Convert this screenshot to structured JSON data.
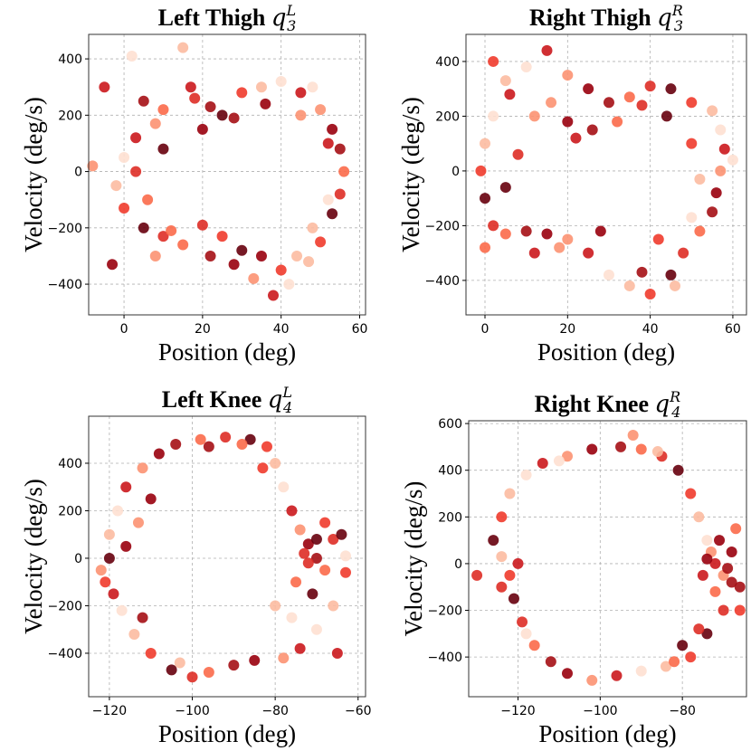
{
  "chart_data": [
    {
      "type": "scatter",
      "title": {
        "text": "Left Thigh",
        "symbol": "q",
        "sub": "3",
        "sup": "L"
      },
      "xlabel": "Position (deg)",
      "ylabel": "Velocity (deg/s)",
      "xlim": [
        -9,
        61.5
      ],
      "ylim": [
        -509,
        487
      ],
      "xticks": [
        0,
        20,
        40,
        60
      ],
      "yticks": [
        -400,
        -200,
        0,
        200,
        400
      ],
      "grid": true,
      "points": [
        [
          15,
          440
        ],
        [
          2,
          410
        ],
        [
          -5,
          300
        ],
        [
          -8,
          20
        ],
        [
          -3,
          -330
        ],
        [
          5,
          250
        ],
        [
          10,
          220
        ],
        [
          18,
          260
        ],
        [
          25,
          200
        ],
        [
          30,
          280
        ],
        [
          35,
          300
        ],
        [
          40,
          320
        ],
        [
          45,
          280
        ],
        [
          50,
          220
        ],
        [
          53,
          150
        ],
        [
          55,
          80
        ],
        [
          56,
          0
        ],
        [
          55,
          -80
        ],
        [
          53,
          -150
        ],
        [
          50,
          -250
        ],
        [
          47,
          -320
        ],
        [
          42,
          -400
        ],
        [
          38,
          -440
        ],
        [
          33,
          -380
        ],
        [
          28,
          -330
        ],
        [
          22,
          -300
        ],
        [
          15,
          -260
        ],
        [
          10,
          -230
        ],
        [
          5,
          -200
        ],
        [
          0,
          -130
        ],
        [
          -2,
          -50
        ],
        [
          0,
          50
        ],
        [
          3,
          120
        ],
        [
          8,
          170
        ],
        [
          20,
          150
        ],
        [
          28,
          190
        ],
        [
          12,
          -210
        ],
        [
          20,
          -190
        ],
        [
          30,
          -280
        ],
        [
          40,
          -350
        ],
        [
          48,
          -200
        ],
        [
          52,
          -100
        ],
        [
          52,
          100
        ],
        [
          45,
          200
        ],
        [
          36,
          240
        ],
        [
          22,
          230
        ],
        [
          6,
          -100
        ],
        [
          3,
          0
        ],
        [
          10,
          80
        ],
        [
          25,
          -230
        ],
        [
          44,
          -300
        ],
        [
          48,
          300
        ],
        [
          17,
          300
        ],
        [
          8,
          -300
        ],
        [
          35,
          -300
        ]
      ]
    },
    {
      "type": "scatter",
      "title": {
        "text": "Right Thigh",
        "symbol": "q",
        "sub": "3",
        "sup": "R"
      },
      "xlabel": "Position (deg)",
      "ylabel": "Velocity (deg/s)",
      "xlim": [
        -4.6,
        63.3
      ],
      "ylim": [
        -526,
        499
      ],
      "xticks": [
        0,
        20,
        40,
        60
      ],
      "yticks": [
        -400,
        -200,
        0,
        200,
        400
      ],
      "grid": true,
      "points": [
        [
          2,
          400
        ],
        [
          5,
          330
        ],
        [
          10,
          380
        ],
        [
          15,
          440
        ],
        [
          20,
          350
        ],
        [
          25,
          300
        ],
        [
          30,
          250
        ],
        [
          35,
          270
        ],
        [
          40,
          310
        ],
        [
          45,
          300
        ],
        [
          50,
          250
        ],
        [
          55,
          220
        ],
        [
          57,
          150
        ],
        [
          58,
          80
        ],
        [
          57,
          0
        ],
        [
          56,
          -80
        ],
        [
          55,
          -150
        ],
        [
          52,
          -220
        ],
        [
          48,
          -300
        ],
        [
          45,
          -380
        ],
        [
          40,
          -450
        ],
        [
          35,
          -420
        ],
        [
          30,
          -380
        ],
        [
          25,
          -300
        ],
        [
          20,
          -250
        ],
        [
          15,
          -230
        ],
        [
          10,
          -220
        ],
        [
          5,
          -230
        ],
        [
          2,
          -200
        ],
        [
          0,
          -100
        ],
        [
          -1,
          0
        ],
        [
          0,
          100
        ],
        [
          2,
          200
        ],
        [
          6,
          280
        ],
        [
          12,
          200
        ],
        [
          20,
          180
        ],
        [
          26,
          150
        ],
        [
          32,
          180
        ],
        [
          38,
          240
        ],
        [
          44,
          200
        ],
        [
          50,
          100
        ],
        [
          52,
          -30
        ],
        [
          50,
          -170
        ],
        [
          12,
          -300
        ],
        [
          18,
          -280
        ],
        [
          28,
          -220
        ],
        [
          38,
          -370
        ],
        [
          0,
          -280
        ],
        [
          8,
          60
        ],
        [
          5,
          -60
        ],
        [
          42,
          -250
        ],
        [
          46,
          -420
        ],
        [
          60,
          40
        ],
        [
          22,
          120
        ],
        [
          16,
          250
        ]
      ]
    },
    {
      "type": "scatter",
      "title": {
        "text": "Left Knee",
        "symbol": "q",
        "sub": "4",
        "sup": "L"
      },
      "xlabel": "Position (deg)",
      "ylabel": "Velocity (deg/s)",
      "xlim": [
        -125,
        -58.2
      ],
      "ylim": [
        -583,
        598
      ],
      "xticks": [
        -120,
        -100,
        -80,
        -60
      ],
      "yticks": [
        -400,
        -200,
        0,
        200,
        400
      ],
      "grid": true,
      "points": [
        [
          -120,
          0
        ],
        [
          -121,
          -100
        ],
        [
          -120,
          100
        ],
        [
          -118,
          200
        ],
        [
          -116,
          300
        ],
        [
          -112,
          380
        ],
        [
          -108,
          440
        ],
        [
          -104,
          480
        ],
        [
          -98,
          500
        ],
        [
          -92,
          510
        ],
        [
          -86,
          500
        ],
        [
          -82,
          470
        ],
        [
          -80,
          400
        ],
        [
          -78,
          300
        ],
        [
          -76,
          200
        ],
        [
          -74,
          120
        ],
        [
          -72,
          60
        ],
        [
          -70,
          0
        ],
        [
          -68,
          -50
        ],
        [
          -66,
          80
        ],
        [
          -64,
          100
        ],
        [
          -63,
          -60
        ],
        [
          -66,
          -200
        ],
        [
          -70,
          -300
        ],
        [
          -74,
          -380
        ],
        [
          -78,
          -420
        ],
        [
          -85,
          -430
        ],
        [
          -90,
          -450
        ],
        [
          -96,
          -480
        ],
        [
          -100,
          -500
        ],
        [
          -105,
          -470
        ],
        [
          -110,
          -400
        ],
        [
          -114,
          -320
        ],
        [
          -117,
          -220
        ],
        [
          -119,
          -150
        ],
        [
          -122,
          -50
        ],
        [
          -116,
          50
        ],
        [
          -112,
          -250
        ],
        [
          -75,
          -100
        ],
        [
          -73,
          20
        ],
        [
          -71,
          -150
        ],
        [
          -68,
          150
        ],
        [
          -80,
          -200
        ],
        [
          -76,
          -250
        ],
        [
          -65,
          -400
        ],
        [
          -113,
          150
        ],
        [
          -110,
          250
        ],
        [
          -96,
          470
        ],
        [
          -88,
          480
        ],
        [
          -72,
          -20
        ],
        [
          -70,
          80
        ],
        [
          -83,
          380
        ],
        [
          -103,
          -440
        ],
        [
          -63,
          10
        ]
      ]
    },
    {
      "type": "scatter",
      "title": {
        "text": "Right Knee",
        "symbol": "q",
        "sub": "4",
        "sup": "R"
      },
      "xlabel": "Position (deg)",
      "ylabel": "Velocity (deg/s)",
      "xlim": [
        -132,
        -64.4
      ],
      "ylim": [
        -570,
        612
      ],
      "xticks": [
        -120,
        -100,
        -80
      ],
      "yticks": [
        -400,
        -200,
        0,
        200,
        400,
        600
      ],
      "grid": true,
      "points": [
        [
          -130,
          -50
        ],
        [
          -126,
          100
        ],
        [
          -124,
          200
        ],
        [
          -122,
          300
        ],
        [
          -118,
          380
        ],
        [
          -114,
          430
        ],
        [
          -108,
          460
        ],
        [
          -102,
          490
        ],
        [
          -95,
          500
        ],
        [
          -90,
          490
        ],
        [
          -85,
          460
        ],
        [
          -81,
          400
        ],
        [
          -78,
          300
        ],
        [
          -76,
          200
        ],
        [
          -74,
          100
        ],
        [
          -72,
          0
        ],
        [
          -70,
          -50
        ],
        [
          -68,
          50
        ],
        [
          -66,
          -100
        ],
        [
          -67,
          150
        ],
        [
          -70,
          -200
        ],
        [
          -74,
          -300
        ],
        [
          -78,
          -400
        ],
        [
          -84,
          -440
        ],
        [
          -90,
          -460
        ],
        [
          -96,
          -480
        ],
        [
          -102,
          -500
        ],
        [
          -108,
          -470
        ],
        [
          -112,
          -420
        ],
        [
          -116,
          -350
        ],
        [
          -119,
          -250
        ],
        [
          -121,
          -150
        ],
        [
          -122,
          -50
        ],
        [
          -124,
          30
        ],
        [
          -118,
          -300
        ],
        [
          -75,
          -50
        ],
        [
          -73,
          50
        ],
        [
          -71,
          100
        ],
        [
          -69,
          -20
        ],
        [
          -72,
          -120
        ],
        [
          -76,
          -280
        ],
        [
          -80,
          -350
        ],
        [
          -66,
          -200
        ],
        [
          -86,
          480
        ],
        [
          -110,
          440
        ],
        [
          -120,
          0
        ],
        [
          -92,
          550
        ],
        [
          -74,
          20
        ],
        [
          -68,
          -80
        ],
        [
          -82,
          -420
        ],
        [
          -124,
          -100
        ]
      ]
    }
  ],
  "colors": {
    "palette": [
      "#fcbba1",
      "#fc9272",
      "#fb6a4a",
      "#ef3b2c",
      "#cb181d",
      "#a50f15",
      "#67000d",
      "#fee0d2",
      "#99000d",
      "#de2d26"
    ],
    "colormap": "Reds"
  }
}
